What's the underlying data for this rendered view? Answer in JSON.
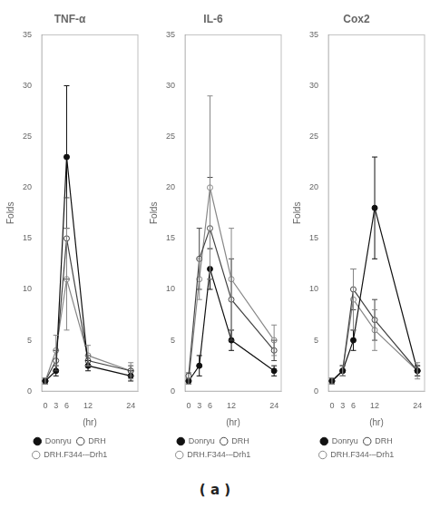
{
  "chart_data": [
    {
      "type": "line",
      "title": "TNF-α",
      "xlabel": "(hr)",
      "ylabel": "Folds",
      "x": [
        0,
        3,
        6,
        12,
        24
      ],
      "series": [
        {
          "name": "Donryu",
          "color": "#111111",
          "marker": "filled_circle",
          "values": [
            1,
            2,
            23,
            2.5,
            1.5
          ],
          "errors": [
            0.3,
            0.5,
            7,
            0.5,
            0.5
          ]
        },
        {
          "name": "DRH",
          "color": "#444444",
          "marker": "open_circle",
          "values": [
            1,
            3,
            15,
            3,
            2
          ],
          "errors": [
            0.3,
            1,
            4,
            0.5,
            0.5
          ]
        },
        {
          "name": "DRH.F344-–Drh1",
          "color": "#888888",
          "marker": "open_circle",
          "values": [
            1,
            4,
            11,
            3.5,
            2
          ],
          "errors": [
            0.3,
            1.5,
            5,
            1,
            0.8
          ]
        }
      ],
      "xlim": [
        -1,
        26
      ],
      "xticks": [
        0,
        3,
        6,
        12,
        24
      ],
      "ylim": [
        0,
        35
      ],
      "yticks": [
        0,
        5,
        10,
        15,
        20,
        25,
        30,
        35
      ],
      "grid": false,
      "legend": "bottom"
    },
    {
      "type": "line",
      "title": "IL-6",
      "xlabel": "(hr)",
      "ylabel": "Folds",
      "x": [
        0,
        3,
        6,
        12,
        24
      ],
      "series": [
        {
          "name": "Donryu",
          "color": "#111111",
          "marker": "filled_circle",
          "values": [
            1,
            2.5,
            12,
            5,
            2
          ],
          "errors": [
            0.3,
            1,
            2,
            1,
            0.5
          ]
        },
        {
          "name": "DRH",
          "color": "#444444",
          "marker": "open_circle",
          "values": [
            1.5,
            13,
            16,
            9,
            4
          ],
          "errors": [
            0.3,
            3,
            5,
            4,
            1
          ]
        },
        {
          "name": "DRH.F344-–Drh1",
          "color": "#888888",
          "marker": "open_circle",
          "values": [
            1,
            11,
            20,
            11,
            5
          ],
          "errors": [
            0.3,
            2,
            9,
            5,
            1.5
          ]
        }
      ],
      "xlim": [
        -1,
        26
      ],
      "xticks": [
        0,
        3,
        6,
        12,
        24
      ],
      "ylim": [
        0,
        35
      ],
      "yticks": [
        0,
        5,
        10,
        15,
        20,
        25,
        30,
        35
      ],
      "grid": false,
      "legend": "bottom"
    },
    {
      "type": "line",
      "title": "Cox2",
      "xlabel": "(hr)",
      "ylabel": "Folds",
      "x": [
        0,
        3,
        6,
        12,
        24
      ],
      "series": [
        {
          "name": "Donryu",
          "color": "#111111",
          "marker": "filled_circle",
          "values": [
            1,
            2,
            5,
            18,
            2
          ],
          "errors": [
            0.3,
            0.5,
            1,
            5,
            0.5
          ]
        },
        {
          "name": "DRH",
          "color": "#444444",
          "marker": "open_circle",
          "values": [
            1,
            2,
            10,
            7,
            2
          ],
          "errors": [
            0.3,
            0.5,
            2,
            2,
            0.5
          ]
        },
        {
          "name": "DRH.F344-–Drh1",
          "color": "#888888",
          "marker": "open_circle",
          "values": [
            1,
            2,
            9,
            6,
            2
          ],
          "errors": [
            0.3,
            0.5,
            3,
            2,
            0.8
          ]
        }
      ],
      "xlim": [
        -1,
        26
      ],
      "xticks": [
        0,
        3,
        6,
        12,
        24
      ],
      "ylim": [
        0,
        35
      ],
      "yticks": [
        0,
        5,
        10,
        15,
        20,
        25,
        30,
        35
      ],
      "grid": false,
      "legend": "bottom"
    }
  ],
  "annotations": [
    "( a )"
  ]
}
